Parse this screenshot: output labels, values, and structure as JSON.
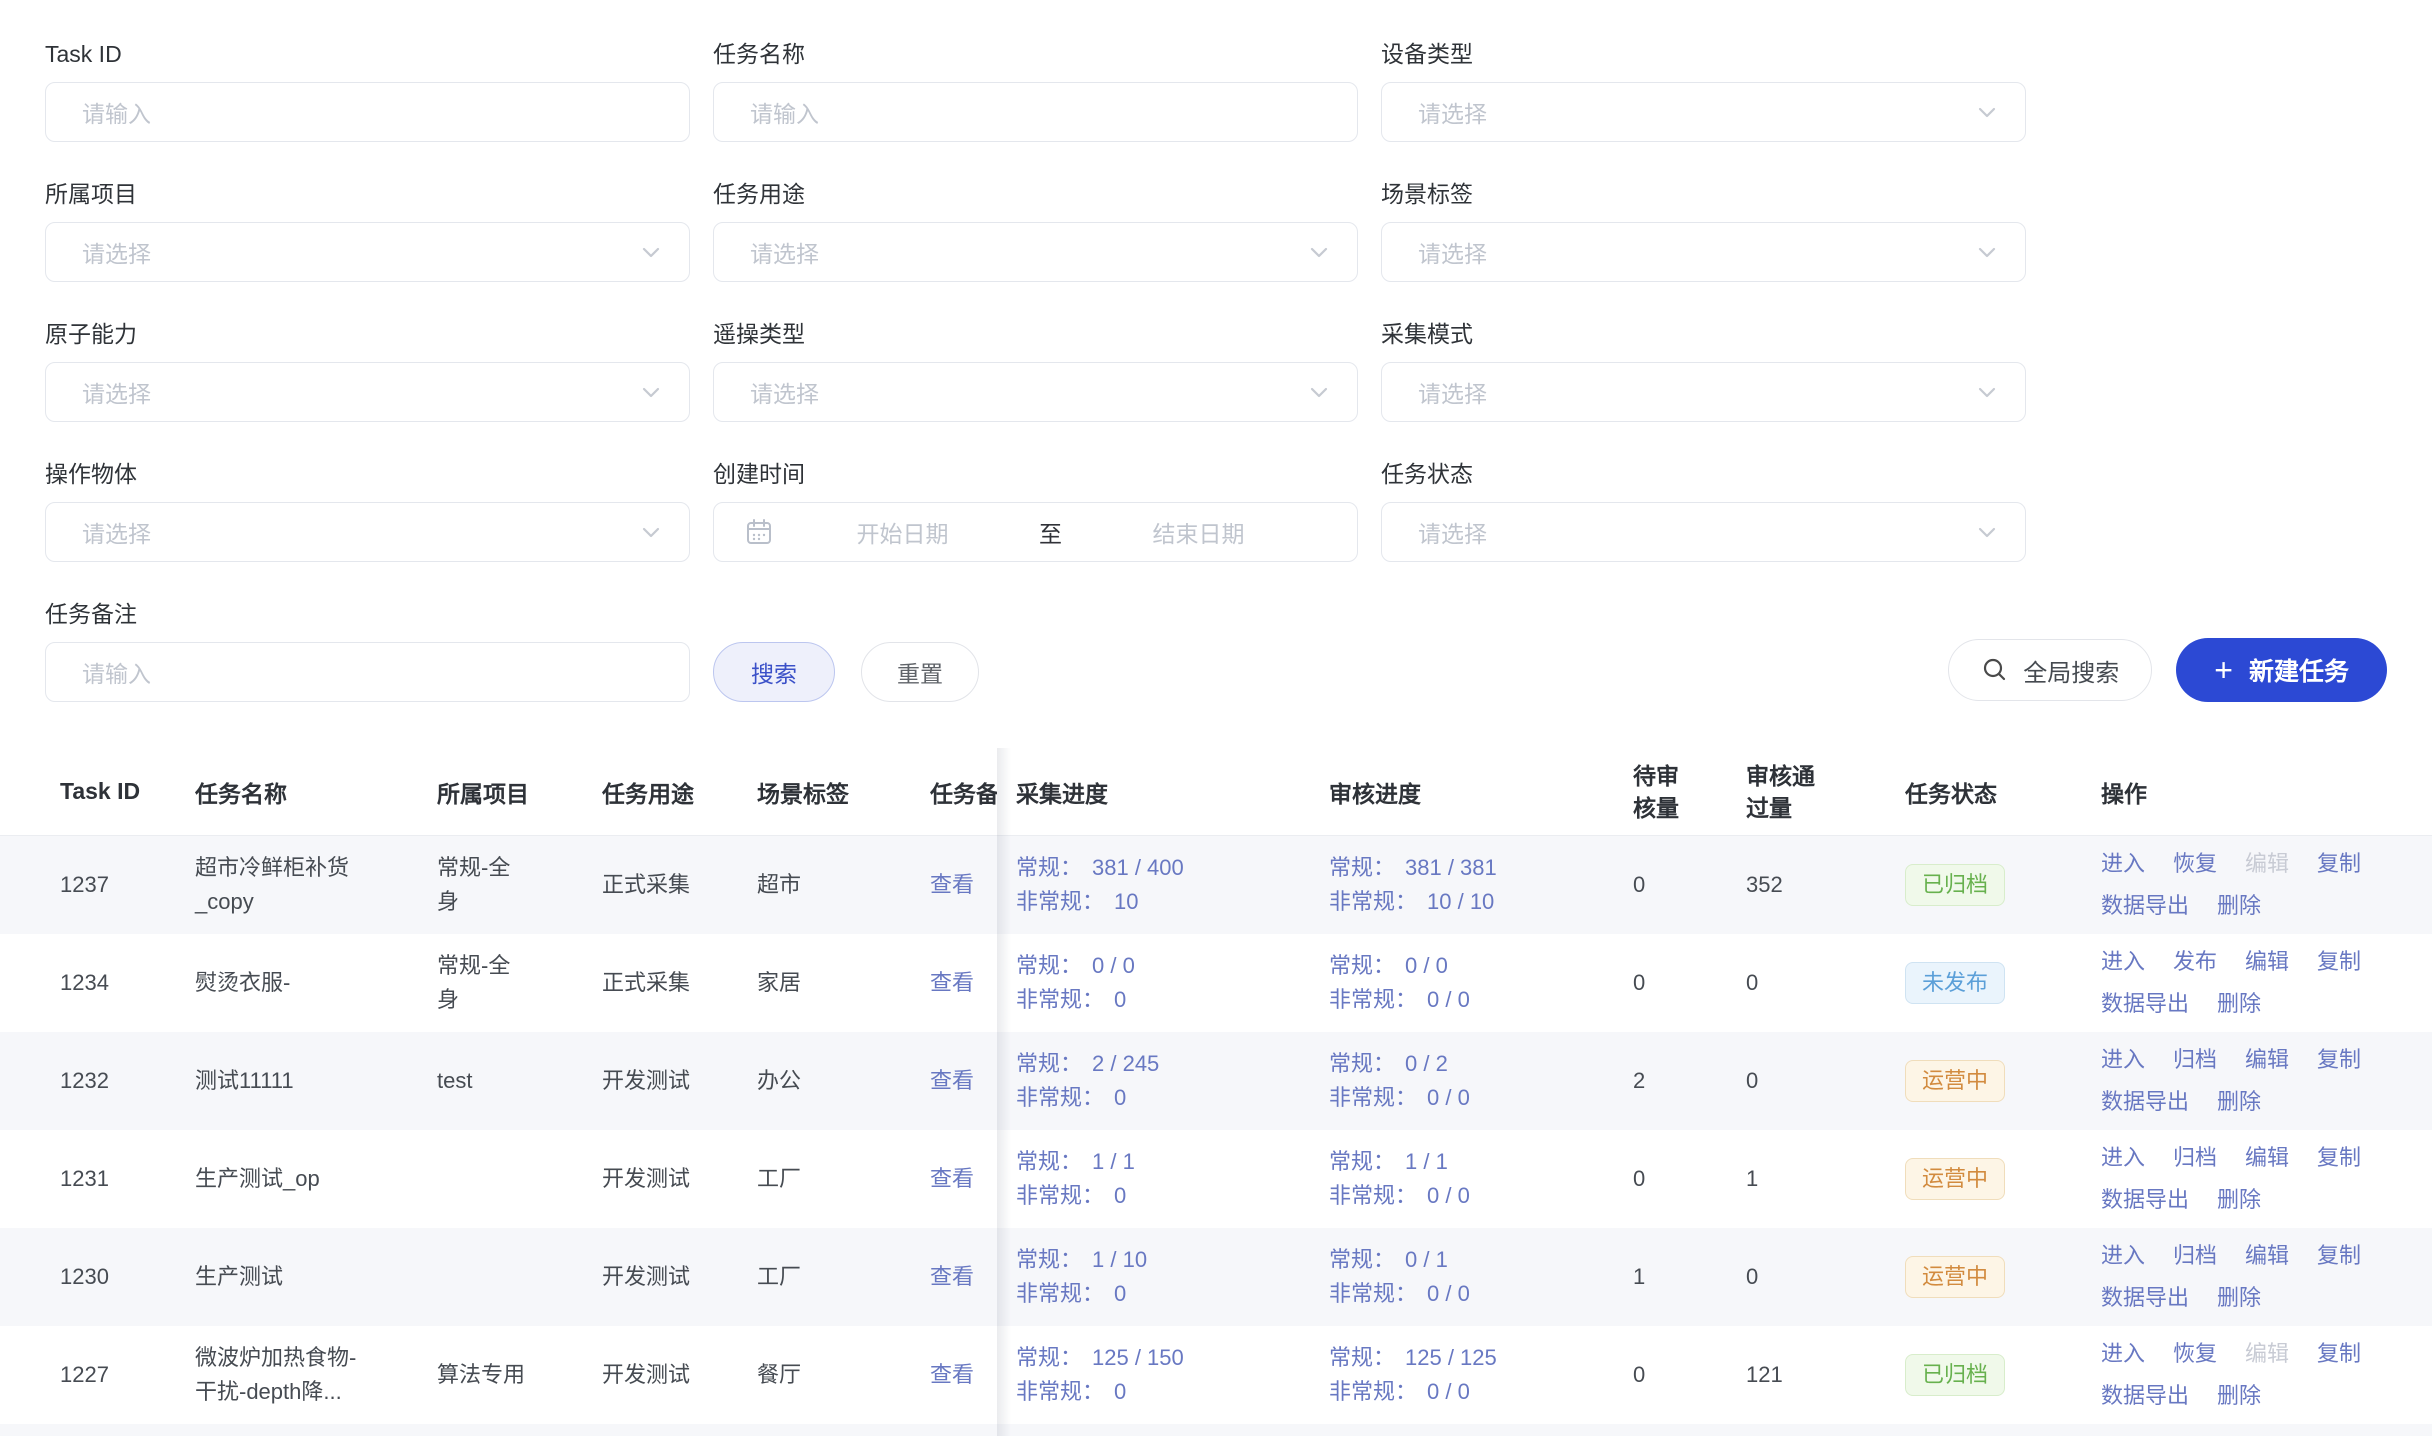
{
  "filters": {
    "search_label": "搜索",
    "reset_label": "重置",
    "global_search_label": "全局搜索",
    "new_task_label": "新建任务",
    "plus_glyph": "+",
    "date_separator": "至",
    "fields": [
      {
        "id": "task-id",
        "label": "Task ID",
        "type": "input",
        "placeholder": "请输入"
      },
      {
        "id": "task-name",
        "label": "任务名称",
        "type": "input",
        "placeholder": "请输入"
      },
      {
        "id": "device-type",
        "label": "设备类型",
        "type": "select",
        "placeholder": "请选择"
      },
      {
        "id": "project",
        "label": "所属项目",
        "type": "select",
        "placeholder": "请选择"
      },
      {
        "id": "task-purpose",
        "label": "任务用途",
        "type": "select",
        "placeholder": "请选择"
      },
      {
        "id": "scene-tag",
        "label": "场景标签",
        "type": "select",
        "placeholder": "请选择"
      },
      {
        "id": "atomic-capability",
        "label": "原子能力",
        "type": "select",
        "placeholder": "请选择"
      },
      {
        "id": "teleop-type",
        "label": "遥操类型",
        "type": "select",
        "placeholder": "请选择"
      },
      {
        "id": "collection-mode",
        "label": "采集模式",
        "type": "select",
        "placeholder": "请选择"
      },
      {
        "id": "operation-object",
        "label": "操作物体",
        "type": "select",
        "placeholder": "请选择"
      },
      {
        "id": "create-time",
        "label": "创建时间",
        "type": "daterange",
        "start_placeholder": "开始日期",
        "end_placeholder": "结束日期"
      },
      {
        "id": "task-status",
        "label": "任务状态",
        "type": "select",
        "placeholder": "请选择"
      },
      {
        "id": "task-remark",
        "label": "任务备注",
        "type": "input",
        "placeholder": "请输入"
      }
    ]
  },
  "table": {
    "headers": [
      "Task ID",
      "任务名称",
      "所属项目",
      "任务用途",
      "场景标签",
      "任务备注",
      "采集进度",
      "审核进度",
      "待审核量",
      "审核通过量",
      "任务状态",
      "操作"
    ],
    "regular_label": "常规：",
    "irregular_label": "非常规：",
    "rows": [
      {
        "task_id": "1237",
        "name": "超市冷鲜柜补货_copy",
        "project": "常规-全身",
        "purpose": "正式采集",
        "scene": "超市",
        "remark_link": "查看",
        "collect_regular": "381 / 400",
        "collect_irregular": "10",
        "review_regular": "381 / 381",
        "review_irregular": "10 / 10",
        "pending": "0",
        "approved": "352",
        "status": "已归档",
        "status_type": "green",
        "actions": [
          {
            "name": "enter",
            "label": "进入",
            "enabled": true
          },
          {
            "name": "restore",
            "label": "恢复",
            "enabled": true
          },
          {
            "name": "edit",
            "label": "编辑",
            "enabled": false
          },
          {
            "name": "copy",
            "label": "复制",
            "enabled": true
          },
          {
            "name": "export",
            "label": "数据导出",
            "enabled": true
          },
          {
            "name": "delete",
            "label": "删除",
            "enabled": true
          }
        ]
      },
      {
        "task_id": "1234",
        "name": "熨烫衣服-",
        "project": "常规-全身",
        "purpose": "正式采集",
        "scene": "家居",
        "remark_link": "查看",
        "collect_regular": "0 / 0",
        "collect_irregular": "0",
        "review_regular": "0 / 0",
        "review_irregular": "0 / 0",
        "pending": "0",
        "approved": "0",
        "status": "未发布",
        "status_type": "blue",
        "actions": [
          {
            "name": "enter",
            "label": "进入",
            "enabled": true
          },
          {
            "name": "publish",
            "label": "发布",
            "enabled": true
          },
          {
            "name": "edit",
            "label": "编辑",
            "enabled": true
          },
          {
            "name": "copy",
            "label": "复制",
            "enabled": true
          },
          {
            "name": "export",
            "label": "数据导出",
            "enabled": true
          },
          {
            "name": "delete",
            "label": "删除",
            "enabled": true
          }
        ]
      },
      {
        "task_id": "1232",
        "name": "测试11111",
        "project": "test",
        "purpose": "开发测试",
        "scene": "办公",
        "remark_link": "查看",
        "collect_regular": "2 / 245",
        "collect_irregular": "0",
        "review_regular": "0 / 2",
        "review_irregular": "0 / 0",
        "pending": "2",
        "approved": "0",
        "status": "运营中",
        "status_type": "orange",
        "actions": [
          {
            "name": "enter",
            "label": "进入",
            "enabled": true
          },
          {
            "name": "archive",
            "label": "归档",
            "enabled": true
          },
          {
            "name": "edit",
            "label": "编辑",
            "enabled": true
          },
          {
            "name": "copy",
            "label": "复制",
            "enabled": true
          },
          {
            "name": "export",
            "label": "数据导出",
            "enabled": true
          },
          {
            "name": "delete",
            "label": "删除",
            "enabled": true
          }
        ]
      },
      {
        "task_id": "1231",
        "name": "生产测试_op",
        "project": "",
        "purpose": "开发测试",
        "scene": "工厂",
        "remark_link": "查看",
        "collect_regular": "1 / 1",
        "collect_irregular": "0",
        "review_regular": "1 / 1",
        "review_irregular": "0 / 0",
        "pending": "0",
        "approved": "1",
        "status": "运营中",
        "status_type": "orange",
        "actions": [
          {
            "name": "enter",
            "label": "进入",
            "enabled": true
          },
          {
            "name": "archive",
            "label": "归档",
            "enabled": true
          },
          {
            "name": "edit",
            "label": "编辑",
            "enabled": true
          },
          {
            "name": "copy",
            "label": "复制",
            "enabled": true
          },
          {
            "name": "export",
            "label": "数据导出",
            "enabled": true
          },
          {
            "name": "delete",
            "label": "删除",
            "enabled": true
          }
        ]
      },
      {
        "task_id": "1230",
        "name": "生产测试",
        "project": "",
        "purpose": "开发测试",
        "scene": "工厂",
        "remark_link": "查看",
        "collect_regular": "1 / 10",
        "collect_irregular": "0",
        "review_regular": "0 / 1",
        "review_irregular": "0 / 0",
        "pending": "1",
        "approved": "0",
        "status": "运营中",
        "status_type": "orange",
        "actions": [
          {
            "name": "enter",
            "label": "进入",
            "enabled": true
          },
          {
            "name": "archive",
            "label": "归档",
            "enabled": true
          },
          {
            "name": "edit",
            "label": "编辑",
            "enabled": true
          },
          {
            "name": "copy",
            "label": "复制",
            "enabled": true
          },
          {
            "name": "export",
            "label": "数据导出",
            "enabled": true
          },
          {
            "name": "delete",
            "label": "删除",
            "enabled": true
          }
        ]
      },
      {
        "task_id": "1227",
        "name": "微波炉加热食物-干扰-depth降...",
        "project": "算法专用",
        "purpose": "开发测试",
        "scene": "餐厅",
        "remark_link": "查看",
        "collect_regular": "125 / 150",
        "collect_irregular": "0",
        "review_regular": "125 / 125",
        "review_irregular": "0 / 0",
        "pending": "0",
        "approved": "121",
        "status": "已归档",
        "status_type": "green",
        "actions": [
          {
            "name": "enter",
            "label": "进入",
            "enabled": true
          },
          {
            "name": "restore",
            "label": "恢复",
            "enabled": true
          },
          {
            "name": "edit",
            "label": "编辑",
            "enabled": false
          },
          {
            "name": "copy",
            "label": "复制",
            "enabled": true
          },
          {
            "name": "export",
            "label": "数据导出",
            "enabled": true
          },
          {
            "name": "delete",
            "label": "删除",
            "enabled": true
          }
        ]
      }
    ]
  },
  "colors": {
    "accent_blue": "#2c49d4",
    "link_indigo": "#6878c2",
    "status_green": "#67b14e",
    "status_orange": "#d28b3f",
    "status_blue": "#5b9fd8",
    "stripe": "#f6f7fa"
  }
}
